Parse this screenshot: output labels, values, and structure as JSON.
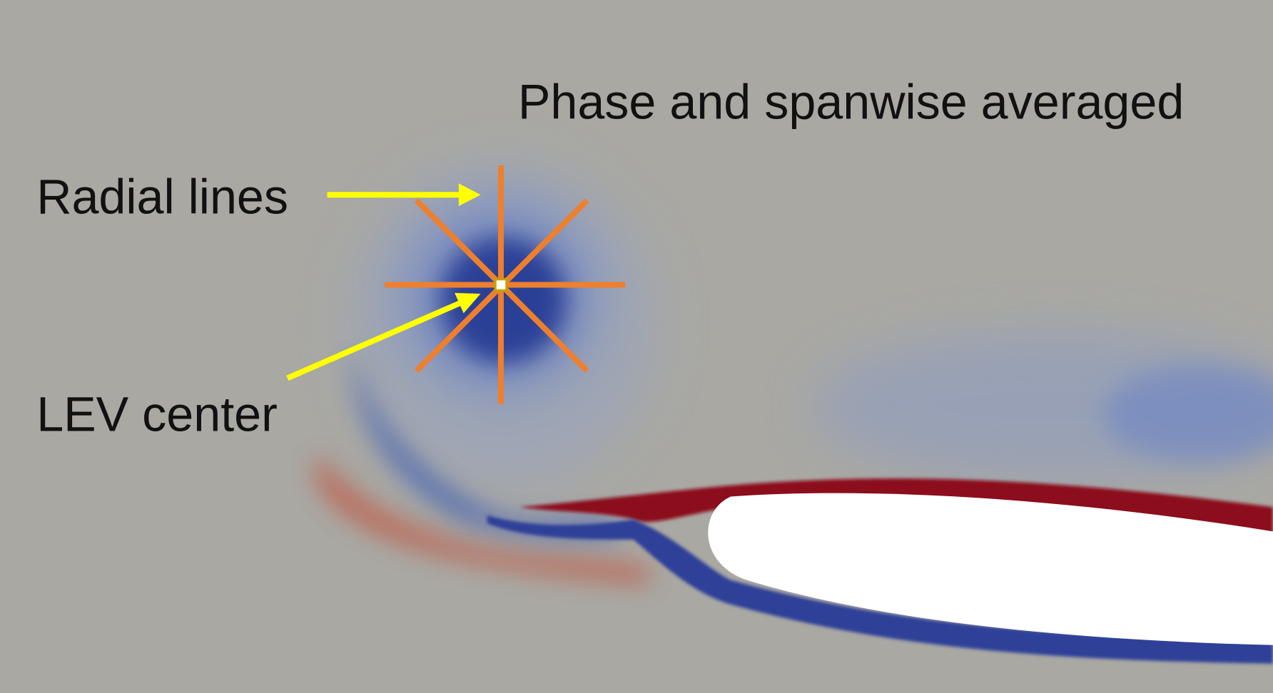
{
  "title": "Phase and spanwise averaged",
  "annotations": [
    {
      "label": "Radial lines"
    },
    {
      "label": "LEV center"
    }
  ]
}
